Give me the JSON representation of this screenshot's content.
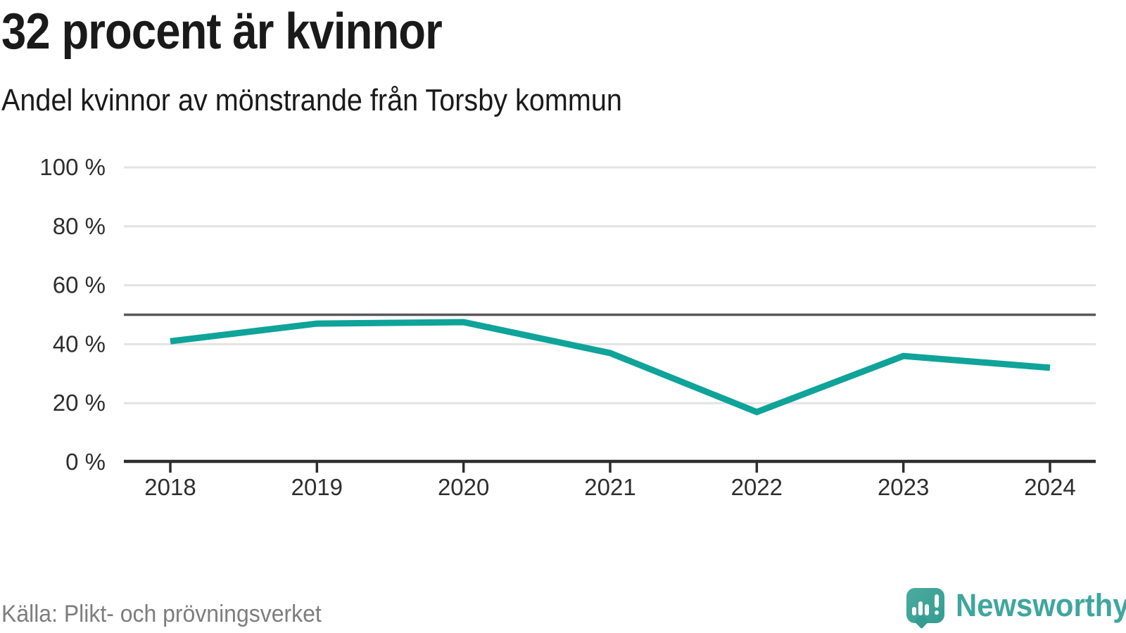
{
  "header": {
    "title": "32 procent är kvinnor",
    "subtitle": "Andel kvinnor av mönstrande från Torsby kommun"
  },
  "chart_data": {
    "type": "line",
    "title": "32 procent är kvinnor",
    "subtitle": "Andel kvinnor av mönstrande från Torsby kommun",
    "x": [
      2018,
      2019,
      2020,
      2021,
      2022,
      2023,
      2024
    ],
    "series": [
      {
        "name": "Andel kvinnor av mönstrande",
        "values": [
          41,
          47,
          47.5,
          37,
          17,
          36,
          32
        ],
        "color": "#0fa39a"
      }
    ],
    "ylim": [
      0,
      100
    ],
    "yticks": [
      0,
      20,
      40,
      60,
      80,
      100
    ],
    "ytick_suffix": " %",
    "reference_line": 50,
    "grid": true,
    "legend_position": "none",
    "xlabel": "",
    "ylabel": ""
  },
  "footer": {
    "source": "Källa: Plikt- och prövningsverket",
    "logo_text": "Newsworthy"
  },
  "icons": {
    "logo_icon": "newsworthy-speech-bubble-bar-chart-icon"
  },
  "colors": {
    "line": "#0fa39a",
    "gridline": "#e3e3e3",
    "reference_line": "#58585a",
    "axis": "#2d2d2d",
    "tick_text": "#2e2e2e",
    "title_text": "#1a1a1a",
    "source_text": "#7d7d7d",
    "logo_teal": "#3fa69e"
  }
}
